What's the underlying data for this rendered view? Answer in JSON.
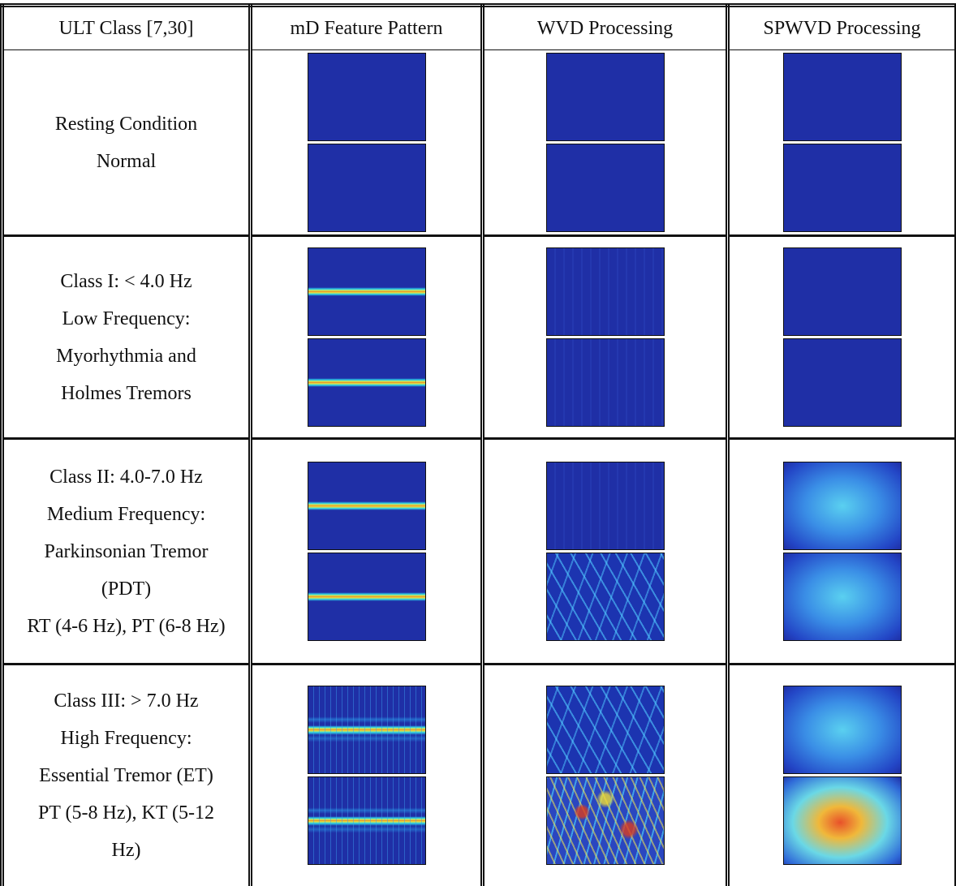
{
  "table": {
    "headers": [
      "ULT Class [7,30]",
      "mD Feature Pattern",
      "WVD Processing",
      "SPWVD Processing"
    ],
    "rows": [
      {
        "label": [
          "Resting Condition",
          "Normal"
        ]
      },
      {
        "label": [
          "Class I: < 4.0 Hz",
          "Low Frequency:",
          "Myorhythmia and",
          "Holmes Tremors"
        ]
      },
      {
        "label": [
          "Class II: 4.0-7.0 Hz",
          "Medium Frequency:",
          "Parkinsonian Tremor (PDT)",
          "RT (4-6 Hz), PT (6-8 Hz)"
        ]
      },
      {
        "label": [
          "Class III: > 7.0 Hz",
          "High Frequency:",
          "Essential Tremor (ET)",
          "PT (5-8 Hz), KT (5-12 Hz)"
        ]
      }
    ]
  }
}
